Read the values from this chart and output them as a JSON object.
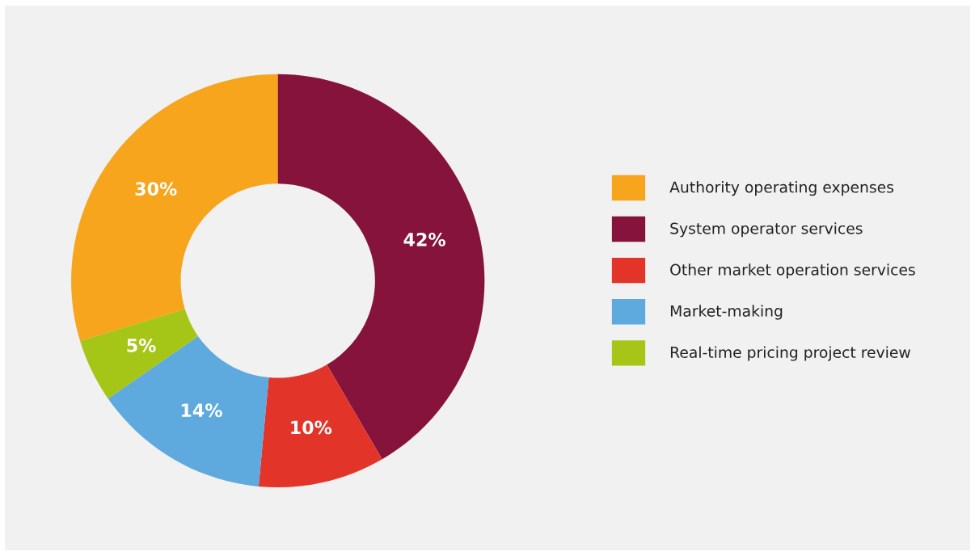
{
  "chart_data": {
    "type": "donut",
    "categories": [
      "Authority operating expenses",
      "System operator services",
      "Other market operation services",
      "Market-making",
      "Real-time pricing project review"
    ],
    "values": [
      30,
      42,
      10,
      14,
      5
    ],
    "colors": [
      "#f7a51c",
      "#85133c",
      "#e3342a",
      "#5ea9dd",
      "#a5c517"
    ],
    "value_labels": [
      "30%",
      "42%",
      "10%",
      "14%",
      "5%"
    ],
    "legend": "right"
  }
}
